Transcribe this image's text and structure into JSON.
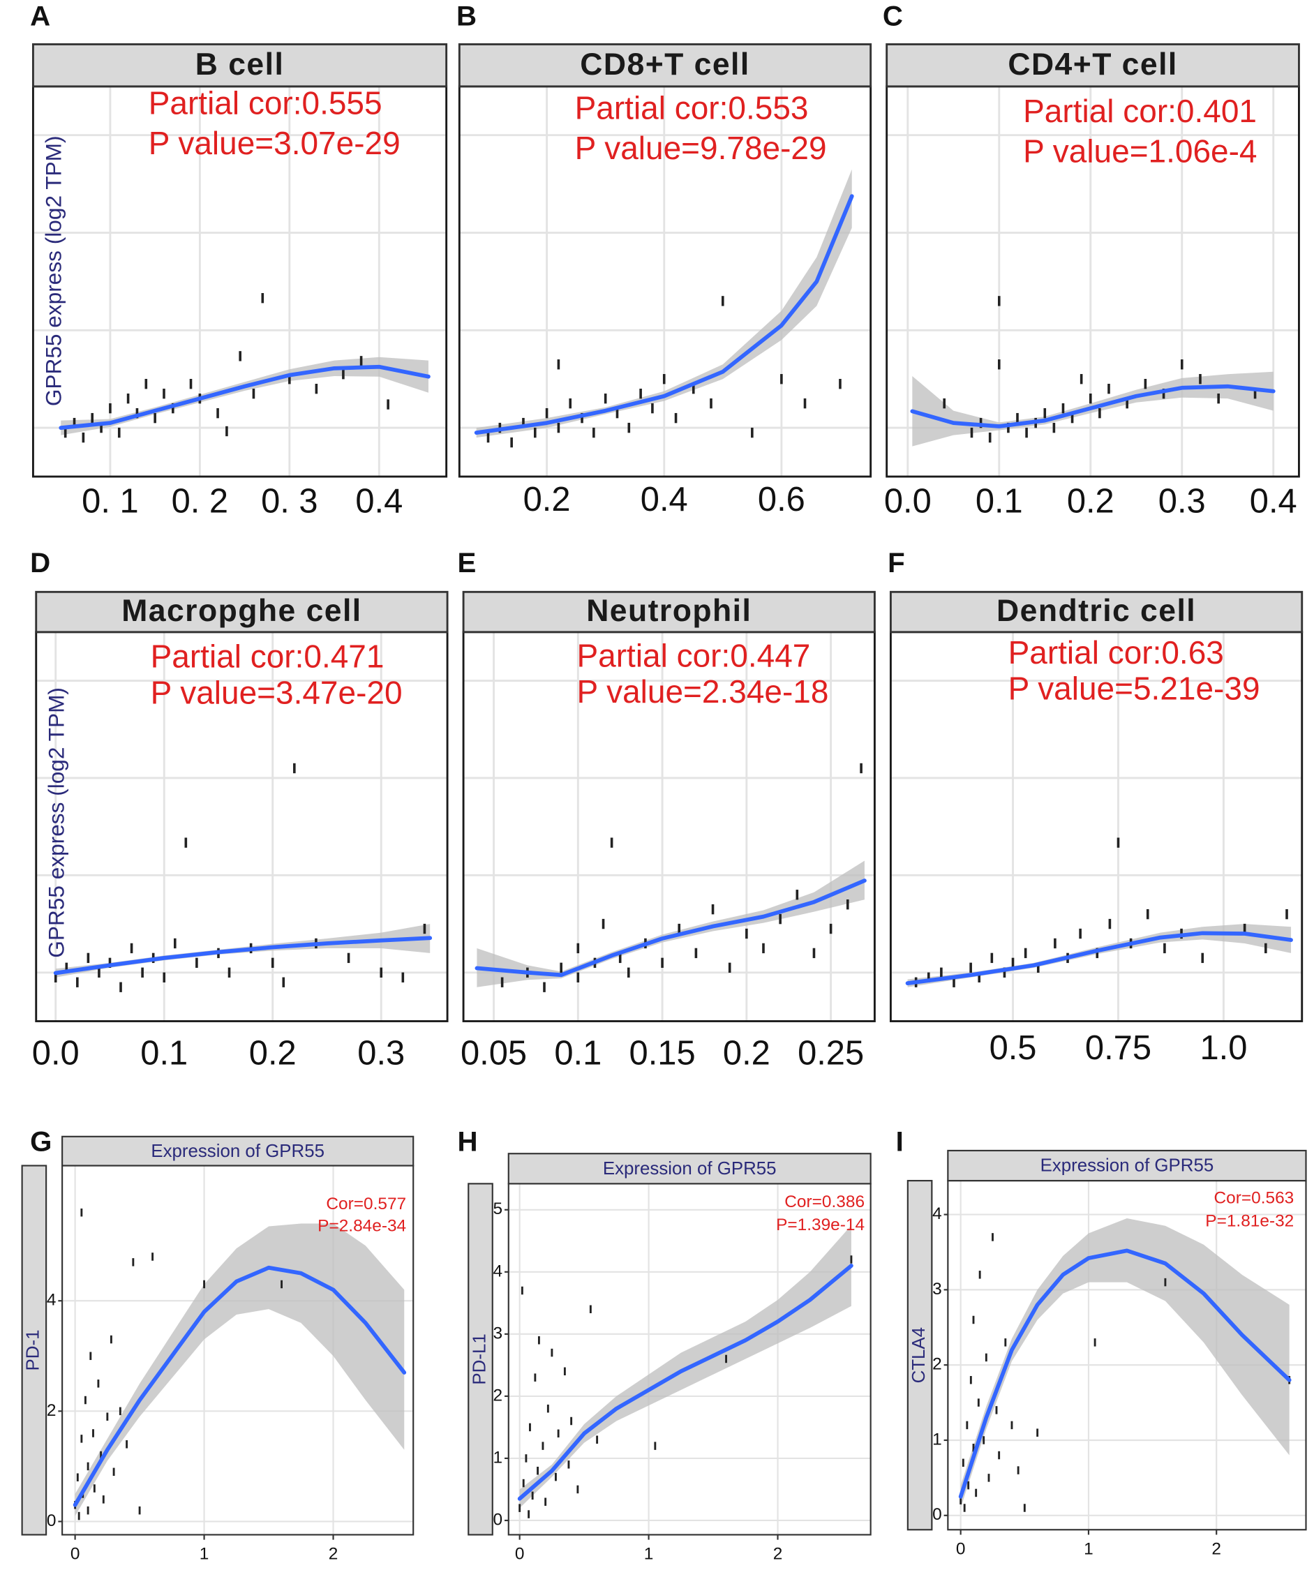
{
  "chart_data": [
    {
      "type": "scatter",
      "panel_label": "A",
      "title": "B cell",
      "annotations": [
        "Partial cor:0.555",
        "P value=3.07e-29"
      ],
      "ylabel": "GPR55 express (log2 TPM)",
      "xlim": [
        0.014,
        0.475
      ],
      "xticks": [
        {
          "value": 0.1,
          "label": "0. 1"
        },
        {
          "value": 0.2,
          "label": "0. 2"
        },
        {
          "value": 0.3,
          "label": "0. 3"
        },
        0.4
      ],
      "ylim": [
        0,
        8
      ],
      "yticks": [
        1,
        3,
        5,
        7
      ],
      "ytick_labels": false,
      "grid": true,
      "points": {
        "color": "#222222",
        "x": [
          0.05,
          0.06,
          0.07,
          0.08,
          0.09,
          0.1,
          0.11,
          0.12,
          0.13,
          0.14,
          0.15,
          0.16,
          0.17,
          0.19,
          0.2,
          0.22,
          0.23,
          0.245,
          0.26,
          0.27,
          0.3,
          0.33,
          0.38,
          0.41,
          0.36
        ],
        "values": [
          0.9,
          1.1,
          0.8,
          1.2,
          1.0,
          1.4,
          0.9,
          1.6,
          1.3,
          1.9,
          1.2,
          1.7,
          1.4,
          1.9,
          1.6,
          1.3,
          0.93,
          2.47,
          1.7,
          3.66,
          2.0,
          1.8,
          2.37,
          1.48,
          2.1
        ]
      },
      "fit": {
        "color": "#3366ff",
        "band_color": "#bdbdbd",
        "x": [
          0.045,
          0.1,
          0.15,
          0.2,
          0.25,
          0.3,
          0.35,
          0.4,
          0.455
        ],
        "values": [
          1.0,
          1.1,
          1.35,
          1.6,
          1.85,
          2.08,
          2.22,
          2.25,
          2.05
        ],
        "lower": [
          0.85,
          1.02,
          1.28,
          1.52,
          1.76,
          1.96,
          2.06,
          2.05,
          1.72
        ],
        "upper": [
          1.15,
          1.18,
          1.42,
          1.68,
          1.94,
          2.2,
          2.38,
          2.45,
          2.38
        ]
      }
    },
    {
      "type": "scatter",
      "panel_label": "B",
      "title": "CD8+T cell",
      "annotations": [
        "Partial cor:0.553",
        "P value=9.78e-29"
      ],
      "xlim": [
        0.051,
        0.752
      ],
      "xticks": [
        0.2,
        0.4,
        0.6
      ],
      "ylim": [
        0,
        8
      ],
      "yticks": [
        1,
        3,
        5,
        7
      ],
      "ytick_labels": false,
      "grid": true,
      "points": {
        "color": "#222222",
        "x": [
          0.1,
          0.12,
          0.14,
          0.16,
          0.18,
          0.2,
          0.22,
          0.24,
          0.26,
          0.28,
          0.3,
          0.32,
          0.34,
          0.36,
          0.38,
          0.42,
          0.45,
          0.48,
          0.5,
          0.55,
          0.6,
          0.64,
          0.7,
          0.22,
          0.4
        ],
        "values": [
          0.8,
          1.0,
          0.7,
          1.1,
          0.9,
          1.3,
          1.0,
          1.5,
          1.2,
          0.9,
          1.6,
          1.3,
          1.0,
          1.7,
          1.4,
          1.2,
          1.8,
          1.5,
          3.6,
          0.9,
          2.0,
          1.5,
          1.9,
          2.3,
          2.0
        ]
      },
      "fit": {
        "color": "#3366ff",
        "band_color": "#bdbdbd",
        "x": [
          0.08,
          0.2,
          0.3,
          0.4,
          0.5,
          0.6,
          0.66,
          0.72
        ],
        "values": [
          0.9,
          1.1,
          1.35,
          1.65,
          2.15,
          3.1,
          4.0,
          5.75
        ],
        "lower": [
          0.8,
          1.0,
          1.28,
          1.55,
          2.0,
          2.8,
          3.5,
          5.1
        ],
        "upper": [
          1.0,
          1.2,
          1.42,
          1.75,
          2.3,
          3.4,
          4.5,
          6.3
        ]
      }
    },
    {
      "type": "scatter",
      "panel_label": "C",
      "title": "CD4+T cell",
      "annotations": [
        "Partial cor:0.401",
        "P value=1.06e-4"
      ],
      "xlim": [
        -0.023,
        0.428
      ],
      "xticks": [
        {
          "value": 0,
          "label": "0.0"
        },
        0.1,
        0.2,
        0.3,
        0.4
      ],
      "ylim": [
        0,
        8
      ],
      "yticks": [
        1,
        3,
        5,
        7
      ],
      "ytick_labels": false,
      "grid": true,
      "points": {
        "color": "#222222",
        "x": [
          0.07,
          0.08,
          0.09,
          0.1,
          0.1,
          0.11,
          0.12,
          0.13,
          0.14,
          0.15,
          0.16,
          0.17,
          0.18,
          0.19,
          0.2,
          0.21,
          0.22,
          0.24,
          0.26,
          0.28,
          0.3,
          0.32,
          0.34,
          0.38,
          0.04
        ],
        "values": [
          0.9,
          1.1,
          0.8,
          3.6,
          2.3,
          1.0,
          1.2,
          0.9,
          1.1,
          1.3,
          1.0,
          1.4,
          1.2,
          2.0,
          1.6,
          1.3,
          1.8,
          1.5,
          1.9,
          1.7,
          2.3,
          2.0,
          1.6,
          1.7,
          1.5
        ]
      },
      "fit": {
        "color": "#3366ff",
        "band_color": "#bdbdbd",
        "x": [
          0.005,
          0.05,
          0.1,
          0.15,
          0.2,
          0.25,
          0.3,
          0.35,
          0.4
        ],
        "values": [
          1.34,
          1.1,
          1.03,
          1.15,
          1.4,
          1.65,
          1.82,
          1.85,
          1.75
        ],
        "lower": [
          0.62,
          0.85,
          0.95,
          1.07,
          1.3,
          1.52,
          1.62,
          1.6,
          1.35
        ],
        "upper": [
          2.06,
          1.35,
          1.11,
          1.23,
          1.5,
          1.78,
          2.02,
          2.1,
          2.15
        ]
      }
    },
    {
      "type": "scatter",
      "panel_label": "D",
      "title": "Macropghe cell",
      "annotations": [
        "Partial cor:0.471",
        "P value=3.47e-20"
      ],
      "ylabel": "GPR55 express (log2 TPM)",
      "xlim": [
        -0.018,
        0.361
      ],
      "xticks": [
        {
          "value": 0,
          "label": "0.0"
        },
        0.1,
        0.2,
        0.3
      ],
      "ylim": [
        0,
        8
      ],
      "yticks": [
        1,
        3,
        5,
        7
      ],
      "ytick_labels": false,
      "grid": true,
      "points": {
        "color": "#222222",
        "x": [
          0.0,
          0.01,
          0.02,
          0.03,
          0.04,
          0.05,
          0.06,
          0.07,
          0.08,
          0.09,
          0.1,
          0.11,
          0.12,
          0.13,
          0.15,
          0.16,
          0.18,
          0.2,
          0.21,
          0.22,
          0.24,
          0.27,
          0.3,
          0.32,
          0.34
        ],
        "values": [
          0.9,
          1.1,
          0.8,
          1.3,
          1.0,
          1.2,
          0.7,
          1.5,
          1.0,
          1.3,
          0.9,
          1.6,
          3.67,
          1.2,
          1.4,
          1.0,
          1.5,
          1.2,
          0.8,
          5.2,
          1.6,
          1.3,
          1.0,
          0.9,
          1.9
        ]
      },
      "fit": {
        "color": "#3366ff",
        "band_color": "#bdbdbd",
        "x": [
          0,
          0.05,
          0.1,
          0.15,
          0.2,
          0.25,
          0.3,
          0.345
        ],
        "values": [
          0.99,
          1.15,
          1.3,
          1.42,
          1.52,
          1.6,
          1.66,
          1.71
        ],
        "lower": [
          0.9,
          1.1,
          1.25,
          1.37,
          1.45,
          1.5,
          1.5,
          1.4
        ],
        "upper": [
          1.08,
          1.2,
          1.35,
          1.47,
          1.59,
          1.7,
          1.82,
          2.0
        ]
      }
    },
    {
      "type": "scatter",
      "panel_label": "E",
      "title": "Neutrophil",
      "annotations": [
        "Partial cor:0.447",
        "P value=2.34e-18"
      ],
      "xlim": [
        0.032,
        0.276
      ],
      "xticks": [
        0.05,
        0.1,
        0.15,
        0.2,
        0.25
      ],
      "ylim": [
        0,
        8
      ],
      "yticks": [
        1,
        3,
        5,
        7
      ],
      "ytick_labels": false,
      "grid": true,
      "points": {
        "color": "#222222",
        "x": [
          0.055,
          0.07,
          0.08,
          0.09,
          0.1,
          0.1,
          0.11,
          0.115,
          0.12,
          0.125,
          0.13,
          0.14,
          0.15,
          0.16,
          0.17,
          0.18,
          0.19,
          0.2,
          0.21,
          0.22,
          0.23,
          0.24,
          0.25,
          0.26,
          0.268
        ],
        "values": [
          0.8,
          1.0,
          0.7,
          1.1,
          0.9,
          1.5,
          1.2,
          2.0,
          3.67,
          1.3,
          1.0,
          1.6,
          1.2,
          1.9,
          1.4,
          2.3,
          1.1,
          1.8,
          1.5,
          2.1,
          2.6,
          1.4,
          1.9,
          2.4,
          5.2
        ]
      },
      "fit": {
        "color": "#3366ff",
        "band_color": "#bdbdbd",
        "x": [
          0.04,
          0.07,
          0.09,
          0.12,
          0.15,
          0.18,
          0.21,
          0.24,
          0.27
        ],
        "values": [
          1.09,
          1.0,
          0.95,
          1.35,
          1.7,
          1.95,
          2.15,
          2.45,
          2.89
        ],
        "lower": [
          0.7,
          0.85,
          0.88,
          1.28,
          1.62,
          1.85,
          2.02,
          2.25,
          2.5
        ],
        "upper": [
          1.5,
          1.15,
          1.02,
          1.42,
          1.78,
          2.05,
          2.28,
          2.65,
          3.3
        ]
      }
    },
    {
      "type": "scatter",
      "panel_label": "F",
      "title": "Dendtric cell",
      "annotations": [
        "Partial cor:0.63",
        "P value=5.21e-39"
      ],
      "xlim": [
        0.21,
        1.186
      ],
      "xticks": [
        0.5,
        0.75,
        {
          "value": 1,
          "label": "1.0"
        }
      ],
      "ylim": [
        0,
        8
      ],
      "yticks": [
        1,
        3,
        5,
        7
      ],
      "ytick_labels": false,
      "grid": true,
      "points": {
        "color": "#222222",
        "x": [
          0.27,
          0.3,
          0.33,
          0.36,
          0.4,
          0.42,
          0.45,
          0.48,
          0.5,
          0.53,
          0.56,
          0.6,
          0.63,
          0.66,
          0.7,
          0.73,
          0.75,
          0.78,
          0.82,
          0.86,
          0.9,
          0.95,
          1.05,
          1.1,
          1.15
        ],
        "values": [
          0.8,
          0.9,
          1.0,
          0.8,
          1.1,
          0.9,
          1.3,
          1.0,
          1.2,
          1.4,
          1.1,
          1.6,
          1.3,
          1.8,
          1.4,
          2.0,
          3.67,
          1.6,
          2.2,
          1.5,
          1.8,
          1.3,
          1.9,
          1.5,
          2.2
        ]
      },
      "fit": {
        "color": "#3366ff",
        "band_color": "#bdbdbd",
        "x": [
          0.25,
          0.4,
          0.55,
          0.7,
          0.85,
          0.95,
          1.05,
          1.16
        ],
        "values": [
          0.78,
          0.95,
          1.15,
          1.45,
          1.72,
          1.81,
          1.8,
          1.67
        ],
        "lower": [
          0.7,
          0.9,
          1.1,
          1.38,
          1.62,
          1.68,
          1.6,
          1.4
        ],
        "upper": [
          0.86,
          1.0,
          1.2,
          1.52,
          1.82,
          1.94,
          2.0,
          1.94
        ]
      }
    },
    {
      "type": "scatter",
      "panel_label": "G",
      "title": "Expression of GPR55",
      "ylabel": "PD-1",
      "annotations": [
        "Cor=0.577",
        "P=2.84e-34"
      ],
      "xlim": [
        -0.1,
        2.62
      ],
      "xticks": [
        0,
        1,
        2
      ],
      "ylim": [
        -0.24,
        6.45
      ],
      "yticks": [
        0,
        2,
        4
      ],
      "ytick_labels": true,
      "grid": true,
      "points": {
        "color": "#222222",
        "x": [
          0.0,
          0.02,
          0.03,
          0.05,
          0.05,
          0.06,
          0.08,
          0.1,
          0.1,
          0.12,
          0.14,
          0.15,
          0.18,
          0.2,
          0.22,
          0.25,
          0.28,
          0.3,
          0.35,
          0.4,
          0.45,
          0.5,
          0.6,
          1.0,
          1.6
        ],
        "values": [
          0.3,
          0.8,
          0.1,
          1.5,
          5.6,
          0.5,
          2.2,
          1.0,
          0.2,
          3.0,
          1.6,
          0.6,
          2.5,
          1.2,
          0.4,
          1.9,
          3.3,
          0.9,
          2.0,
          1.4,
          4.7,
          0.2,
          4.8,
          4.3,
          4.3
        ]
      },
      "fit": {
        "color": "#3366ff",
        "band_color": "#bdbdbd",
        "x": [
          0,
          0.25,
          0.5,
          0.75,
          1.0,
          1.25,
          1.5,
          1.75,
          2.0,
          2.25,
          2.55
        ],
        "values": [
          0.3,
          1.3,
          2.2,
          3.0,
          3.8,
          4.35,
          4.6,
          4.5,
          4.2,
          3.6,
          2.7
        ],
        "lower": [
          0.1,
          1.1,
          1.9,
          2.6,
          3.3,
          3.75,
          3.85,
          3.6,
          3.0,
          2.2,
          1.3
        ],
        "upper": [
          0.5,
          1.5,
          2.5,
          3.4,
          4.3,
          4.95,
          5.35,
          5.4,
          5.4,
          5.0,
          4.2
        ]
      }
    },
    {
      "type": "scatter",
      "panel_label": "H",
      "title": "Expression of GPR55",
      "ylabel": "PD-L1",
      "annotations": [
        "Cor=0.386",
        "P=1.39e-14"
      ],
      "xlim": [
        -0.086,
        2.72
      ],
      "xticks": [
        0,
        1,
        2
      ],
      "ylim": [
        -0.23,
        5.42
      ],
      "yticks": [
        0,
        1,
        2,
        3,
        4,
        5
      ],
      "ytick_labels": true,
      "grid": true,
      "points": {
        "color": "#222222",
        "x": [
          0.0,
          0.02,
          0.03,
          0.05,
          0.07,
          0.08,
          0.1,
          0.12,
          0.14,
          0.15,
          0.18,
          0.2,
          0.22,
          0.25,
          0.28,
          0.3,
          0.35,
          0.38,
          0.4,
          0.45,
          0.55,
          0.6,
          1.05,
          1.6,
          2.57
        ],
        "values": [
          0.2,
          3.7,
          0.6,
          1.0,
          0.1,
          1.5,
          0.4,
          2.3,
          0.8,
          2.9,
          1.2,
          0.3,
          1.8,
          2.7,
          0.7,
          1.4,
          2.4,
          0.9,
          1.6,
          0.5,
          3.4,
          1.3,
          1.2,
          2.6,
          4.2
        ]
      },
      "fit": {
        "color": "#3366ff",
        "band_color": "#bdbdbd",
        "x": [
          0,
          0.25,
          0.5,
          0.75,
          1.0,
          1.25,
          1.5,
          1.75,
          2.0,
          2.25,
          2.57
        ],
        "values": [
          0.35,
          0.8,
          1.4,
          1.8,
          2.1,
          2.4,
          2.65,
          2.9,
          3.2,
          3.55,
          4.1
        ],
        "lower": [
          0.2,
          0.7,
          1.25,
          1.6,
          1.85,
          2.1,
          2.35,
          2.6,
          2.85,
          3.1,
          3.45
        ],
        "upper": [
          0.5,
          0.9,
          1.55,
          2.0,
          2.35,
          2.7,
          2.95,
          3.2,
          3.55,
          4.0,
          4.75
        ]
      }
    },
    {
      "type": "scatter",
      "panel_label": "I",
      "title": "Expression of GPR55",
      "ylabel": "CTLA4",
      "annotations": [
        "Cor=0.563",
        "P=1.81e-32"
      ],
      "xlim": [
        -0.1,
        2.7
      ],
      "xticks": [
        0,
        1,
        2
      ],
      "ylim": [
        -0.19,
        4.45
      ],
      "yticks": [
        0,
        1,
        2,
        3,
        4
      ],
      "ytick_labels": true,
      "grid": true,
      "points": {
        "color": "#222222",
        "x": [
          0.0,
          0.02,
          0.03,
          0.05,
          0.06,
          0.08,
          0.1,
          0.1,
          0.12,
          0.14,
          0.15,
          0.18,
          0.2,
          0.22,
          0.25,
          0.28,
          0.3,
          0.35,
          0.4,
          0.45,
          0.5,
          0.6,
          1.05,
          1.6,
          2.57
        ],
        "values": [
          0.2,
          0.7,
          0.1,
          1.2,
          0.4,
          1.8,
          0.9,
          2.6,
          0.3,
          1.5,
          3.2,
          1.0,
          2.1,
          0.5,
          3.7,
          1.4,
          0.8,
          2.3,
          1.2,
          0.6,
          0.1,
          1.1,
          2.3,
          3.1,
          1.8
        ]
      },
      "fit": {
        "color": "#3366ff",
        "band_color": "#bdbdbd",
        "x": [
          0,
          0.2,
          0.4,
          0.6,
          0.8,
          1.0,
          1.3,
          1.6,
          1.9,
          2.2,
          2.57
        ],
        "values": [
          0.25,
          1.3,
          2.2,
          2.8,
          3.2,
          3.42,
          3.52,
          3.35,
          2.95,
          2.4,
          1.8
        ],
        "lower": [
          0.1,
          1.15,
          2.05,
          2.6,
          2.95,
          3.1,
          3.1,
          2.85,
          2.3,
          1.6,
          0.8
        ],
        "upper": [
          0.4,
          1.45,
          2.35,
          3.0,
          3.45,
          3.75,
          3.95,
          3.85,
          3.6,
          3.2,
          2.8
        ]
      }
    }
  ]
}
